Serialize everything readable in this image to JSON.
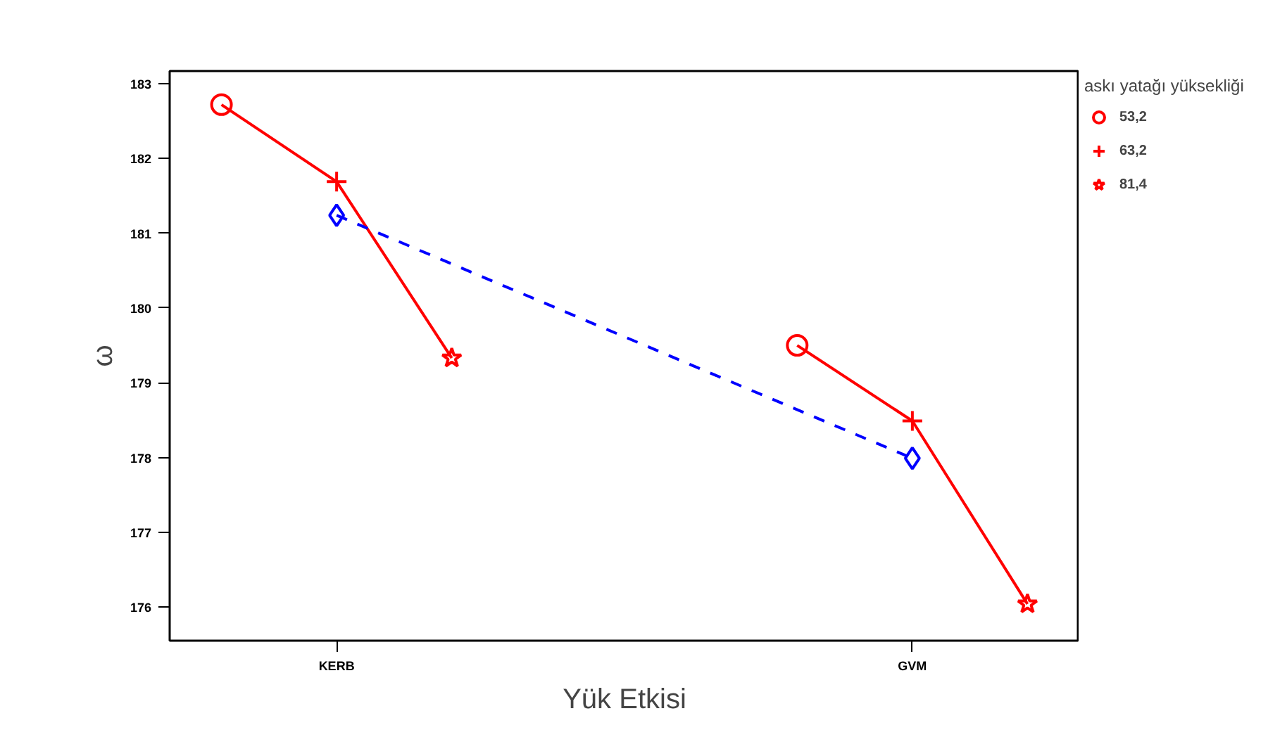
{
  "chart_data": {
    "type": "line",
    "xlabel": "Yük Etkisi",
    "ylabel": "ω",
    "legend_title": "askı yatağı yüksekliği",
    "categories": [
      null,
      "KERB",
      null,
      null,
      null,
      null,
      "GVM",
      null
    ],
    "ylim": [
      175.55,
      183.17
    ],
    "yticks": [
      176,
      177,
      178,
      179,
      180,
      181,
      182,
      183
    ],
    "grid": false,
    "legend": "right",
    "series": [
      {
        "color": "#ff0000",
        "values": [
          182.72,
          181.69,
          179.33,
          null,
          null,
          null,
          null,
          null
        ],
        "marker": "none",
        "line_style": "solid"
      },
      {
        "color": "#ff0000",
        "values": [
          null,
          null,
          null,
          null,
          null,
          179.5,
          178.49,
          176.04
        ],
        "marker": "none",
        "line_style": "solid"
      },
      {
        "color": "#0000ff",
        "x": [
          "KERB",
          "GVM"
        ],
        "values": [
          181.24,
          177.99
        ],
        "marker": "diamond",
        "line_style": "dashed"
      },
      {
        "type": "scatter",
        "name": "53,2",
        "color": "#ff0000",
        "values": [
          182.72,
          null,
          null,
          null,
          null,
          179.5,
          null,
          null
        ],
        "marker": "circle"
      },
      {
        "type": "scatter",
        "name": "63,2",
        "color": "#ff0000",
        "values": [
          null,
          181.69,
          null,
          null,
          null,
          null,
          178.49,
          null
        ],
        "marker": "cross"
      },
      {
        "type": "scatter",
        "name": "81,4",
        "color": "#ff0000",
        "values": [
          null,
          null,
          179.33,
          null,
          null,
          null,
          null,
          176.04
        ],
        "marker": "star"
      }
    ]
  }
}
